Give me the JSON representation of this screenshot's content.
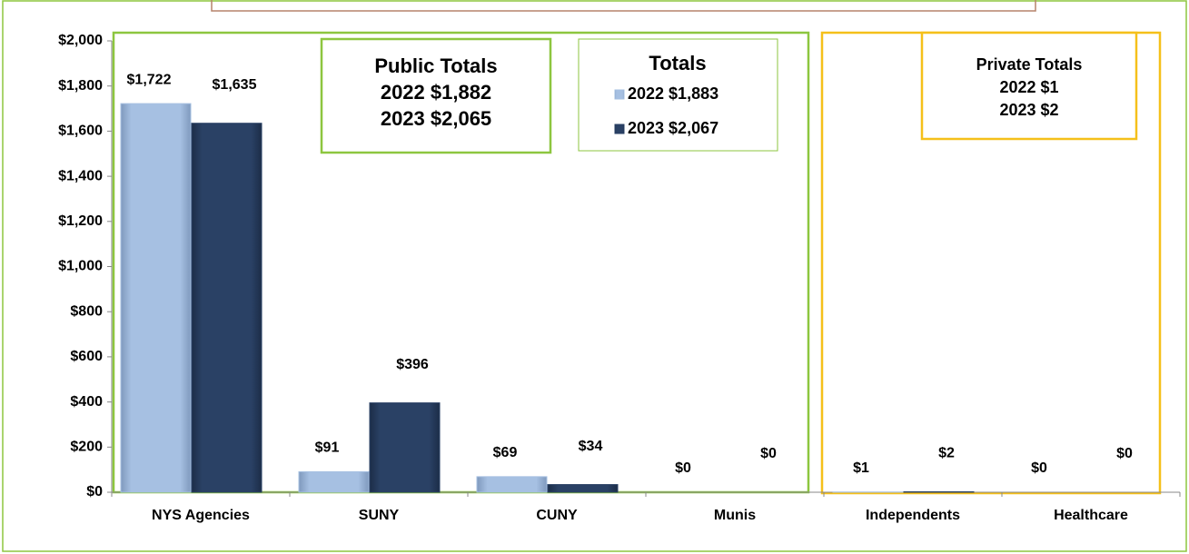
{
  "chart_data": {
    "type": "bar",
    "categories": [
      "NYS Agencies",
      "SUNY",
      "CUNY",
      "Munis",
      "Independents",
      "Healthcare"
    ],
    "series": [
      {
        "name": "2022 $1,883",
        "color": "#a6c0e2",
        "values": [
          1722,
          91,
          69,
          0,
          1,
          0
        ],
        "value_labels": [
          "$1,722",
          "$91",
          "$69",
          "$0",
          "$1",
          "$0"
        ]
      },
      {
        "name": "2023 $2,067",
        "color": "#2a4165",
        "values": [
          1635,
          396,
          34,
          0,
          2,
          0
        ],
        "value_labels": [
          "$1,635",
          "$396",
          "$34",
          "$0",
          "$2",
          "$0"
        ]
      }
    ],
    "legend_title": "Totals",
    "ylim": [
      0,
      2000
    ],
    "yticks": [
      {
        "value": 0,
        "label": "$0"
      },
      {
        "value": 200,
        "label": "$200"
      },
      {
        "value": 400,
        "label": "$400"
      },
      {
        "value": 600,
        "label": "$600"
      },
      {
        "value": 800,
        "label": "$800"
      },
      {
        "value": 1000,
        "label": "$1,000"
      },
      {
        "value": 1200,
        "label": "$1,200"
      },
      {
        "value": 1400,
        "label": "$1,400"
      },
      {
        "value": 1600,
        "label": "$1,600"
      },
      {
        "value": 1800,
        "label": "$1,800"
      },
      {
        "value": 2000,
        "label": "$2,000"
      }
    ],
    "annotations": [
      {
        "lines": [
          "Public Totals",
          "2022 $1,882",
          "2023 $2,065"
        ]
      },
      {
        "lines": [
          "Private Totals",
          "2022 $1",
          "2023 $2"
        ]
      }
    ]
  }
}
